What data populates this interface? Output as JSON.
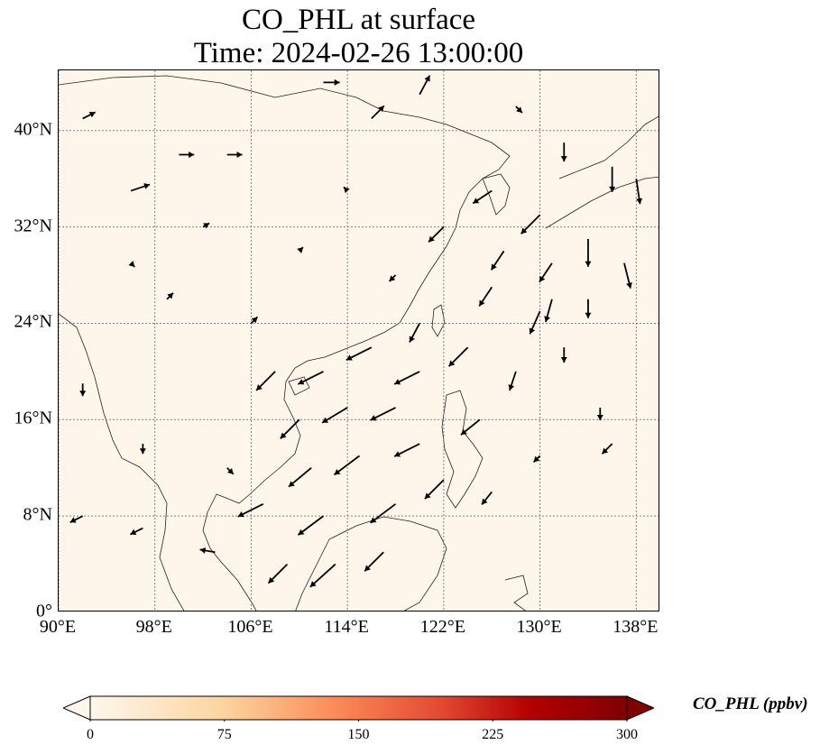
{
  "title": {
    "line1": "CO_PHL at surface",
    "line2": "Time: 2024-02-26 13:00:00"
  },
  "map": {
    "lon_range": [
      90,
      140
    ],
    "lat_range": [
      0,
      45
    ],
    "gridlines": true,
    "x_ticks": [
      {
        "lon": 90,
        "label": "90°E"
      },
      {
        "lon": 98,
        "label": "98°E"
      },
      {
        "lon": 106,
        "label": "106°E"
      },
      {
        "lon": 114,
        "label": "114°E"
      },
      {
        "lon": 122,
        "label": "122°E"
      },
      {
        "lon": 130,
        "label": "130°E"
      },
      {
        "lon": 138,
        "label": "138°E"
      }
    ],
    "y_ticks": [
      {
        "lat": 0,
        "label": "0°"
      },
      {
        "lat": 8,
        "label": "8°N"
      },
      {
        "lat": 16,
        "label": "16°N"
      },
      {
        "lat": 24,
        "label": "24°N"
      },
      {
        "lat": 32,
        "label": "32°N"
      },
      {
        "lat": 40,
        "label": "40°N"
      }
    ],
    "colors": {
      "background": "#fef6ea",
      "coast": "#222222",
      "grid": "#808080",
      "arrow": "#000000"
    }
  },
  "colorbar": {
    "label": "CO_PHL (ppbv)",
    "min": 0,
    "max": 300,
    "extend": "both",
    "colormap": "OrRd",
    "ticks": [
      {
        "value": 0,
        "label": "0"
      },
      {
        "value": 75,
        "label": "75"
      },
      {
        "value": 150,
        "label": "150"
      },
      {
        "value": 225,
        "label": "225"
      },
      {
        "value": 300,
        "label": "300"
      }
    ]
  },
  "wind_vectors": [
    {
      "lon": 92,
      "lat": 41,
      "u": 1,
      "v": 0.5
    },
    {
      "lon": 96,
      "lat": 35,
      "u": 1.5,
      "v": 0.5
    },
    {
      "lon": 100,
      "lat": 38,
      "u": 1.2,
      "v": 0
    },
    {
      "lon": 104,
      "lat": 38,
      "u": 1.2,
      "v": 0
    },
    {
      "lon": 112,
      "lat": 44,
      "u": 1.3,
      "v": 0
    },
    {
      "lon": 116,
      "lat": 41,
      "u": 1,
      "v": 1
    },
    {
      "lon": 120,
      "lat": 43,
      "u": 0.8,
      "v": 1.5
    },
    {
      "lon": 128,
      "lat": 42,
      "u": 0.5,
      "v": -0.5
    },
    {
      "lon": 132,
      "lat": 39,
      "u": 0,
      "v": -1.5
    },
    {
      "lon": 136,
      "lat": 37,
      "u": 0,
      "v": -2
    },
    {
      "lon": 138,
      "lat": 36,
      "u": 0.3,
      "v": -2
    },
    {
      "lon": 134,
      "lat": 31,
      "u": 0,
      "v": -2.2
    },
    {
      "lon": 137,
      "lat": 29,
      "u": 0.5,
      "v": -2
    },
    {
      "lon": 130,
      "lat": 33,
      "u": -1.5,
      "v": -1.5
    },
    {
      "lon": 126,
      "lat": 35,
      "u": -1.5,
      "v": -1
    },
    {
      "lon": 122,
      "lat": 32,
      "u": -1.2,
      "v": -1.2
    },
    {
      "lon": 126,
      "lat": 27,
      "u": -1,
      "v": -1.5
    },
    {
      "lon": 130,
      "lat": 25,
      "u": -0.8,
      "v": -1.8
    },
    {
      "lon": 128,
      "lat": 20,
      "u": -0.5,
      "v": -1.5
    },
    {
      "lon": 124,
      "lat": 22,
      "u": -1.5,
      "v": -1.5
    },
    {
      "lon": 120,
      "lat": 20,
      "u": -2,
      "v": -1
    },
    {
      "lon": 116,
      "lat": 22,
      "u": -2,
      "v": -1
    },
    {
      "lon": 112,
      "lat": 20,
      "u": -2,
      "v": -1
    },
    {
      "lon": 108,
      "lat": 20,
      "u": -1.5,
      "v": -1.5
    },
    {
      "lon": 118,
      "lat": 17,
      "u": -2,
      "v": -1
    },
    {
      "lon": 114,
      "lat": 17,
      "u": -2,
      "v": -1.2
    },
    {
      "lon": 110,
      "lat": 16,
      "u": -1.5,
      "v": -1.5
    },
    {
      "lon": 115,
      "lat": 13,
      "u": -2,
      "v": -1.5
    },
    {
      "lon": 111,
      "lat": 12,
      "u": -1.8,
      "v": -1.5
    },
    {
      "lon": 120,
      "lat": 14,
      "u": -2,
      "v": -1
    },
    {
      "lon": 125,
      "lat": 16,
      "u": -1.5,
      "v": -1.2
    },
    {
      "lon": 107,
      "lat": 9,
      "u": -2,
      "v": -1
    },
    {
      "lon": 112,
      "lat": 8,
      "u": -2,
      "v": -1.5
    },
    {
      "lon": 118,
      "lat": 9,
      "u": -2,
      "v": -1.5
    },
    {
      "lon": 122,
      "lat": 11,
      "u": -1.5,
      "v": -1.5
    },
    {
      "lon": 113,
      "lat": 4,
      "u": -2,
      "v": -1.8
    },
    {
      "lon": 117,
      "lat": 5,
      "u": -1.5,
      "v": -1.5
    },
    {
      "lon": 109,
      "lat": 4,
      "u": -1.5,
      "v": -1.5
    },
    {
      "lon": 103,
      "lat": 5,
      "u": -1.2,
      "v": 0.2
    },
    {
      "lon": 97,
      "lat": 7,
      "u": -1,
      "v": -0.5
    },
    {
      "lon": 92,
      "lat": 8,
      "u": -1,
      "v": -0.5
    },
    {
      "lon": 92,
      "lat": 19,
      "u": 0,
      "v": -1
    },
    {
      "lon": 97,
      "lat": 14,
      "u": 0,
      "v": -0.8
    },
    {
      "lon": 104,
      "lat": 12,
      "u": 0.5,
      "v": -0.5
    },
    {
      "lon": 99,
      "lat": 26,
      "u": 0.5,
      "v": 0.5
    },
    {
      "lon": 106,
      "lat": 24,
      "u": 0.5,
      "v": 0.5
    },
    {
      "lon": 110,
      "lat": 30,
      "u": 0.3,
      "v": 0.3
    },
    {
      "lon": 102,
      "lat": 32,
      "u": 0.5,
      "v": 0.3
    },
    {
      "lon": 96,
      "lat": 29,
      "u": 0.3,
      "v": -0.3
    },
    {
      "lon": 114,
      "lat": 35,
      "u": -0.3,
      "v": 0.3
    },
    {
      "lon": 118,
      "lat": 28,
      "u": -0.5,
      "v": -0.5
    },
    {
      "lon": 120,
      "lat": 24,
      "u": -0.8,
      "v": -1.5
    },
    {
      "lon": 132,
      "lat": 22,
      "u": 0,
      "v": -1.2
    },
    {
      "lon": 135,
      "lat": 17,
      "u": 0,
      "v": -1
    },
    {
      "lon": 136,
      "lat": 14,
      "u": -0.8,
      "v": -0.8
    },
    {
      "lon": 130,
      "lat": 13,
      "u": -0.5,
      "v": -0.5
    },
    {
      "lon": 126,
      "lat": 10,
      "u": -0.8,
      "v": -1
    },
    {
      "lon": 131,
      "lat": 26,
      "u": -0.5,
      "v": -1.8
    },
    {
      "lon": 134,
      "lat": 26,
      "u": 0,
      "v": -1.5
    },
    {
      "lon": 127,
      "lat": 30,
      "u": -1,
      "v": -1.5
    },
    {
      "lon": 131,
      "lat": 29,
      "u": -1,
      "v": -1.5
    }
  ]
}
